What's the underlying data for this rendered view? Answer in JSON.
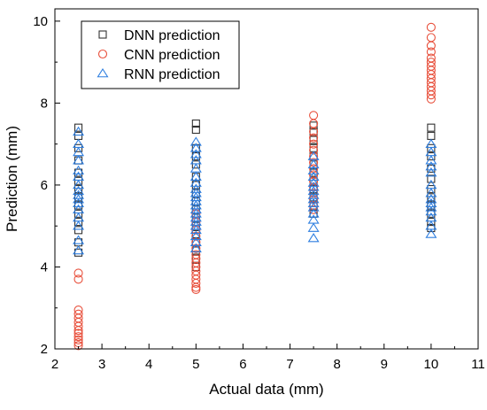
{
  "chart_data": {
    "type": "scatter",
    "xlabel": "Actual data (mm)",
    "ylabel": "Prediction (mm)",
    "xlim": [
      2,
      11
    ],
    "ylim": [
      2,
      10.3
    ],
    "xticks": [
      2,
      3,
      4,
      5,
      6,
      7,
      8,
      9,
      10,
      11
    ],
    "yticks": [
      2,
      4,
      6,
      8,
      10
    ],
    "grid": false,
    "legend_position": "top-left",
    "series": [
      {
        "name": "DNN prediction",
        "marker": "square",
        "color": "#333333",
        "points": [
          [
            2.5,
            7.4
          ],
          [
            2.5,
            7.2
          ],
          [
            2.5,
            6.9
          ],
          [
            2.5,
            6.6
          ],
          [
            2.5,
            6.3
          ],
          [
            2.5,
            6.1
          ],
          [
            2.5,
            5.9
          ],
          [
            2.5,
            5.7
          ],
          [
            2.5,
            5.5
          ],
          [
            2.5,
            5.3
          ],
          [
            2.5,
            5.1
          ],
          [
            2.5,
            4.9
          ],
          [
            2.5,
            4.6
          ],
          [
            2.5,
            4.35
          ],
          [
            5,
            7.5
          ],
          [
            5,
            7.35
          ],
          [
            5,
            6.9
          ],
          [
            5,
            6.7
          ],
          [
            5,
            6.5
          ],
          [
            5,
            6.2
          ],
          [
            5,
            6.0
          ],
          [
            5,
            5.8
          ],
          [
            5,
            5.6
          ],
          [
            5,
            5.4
          ],
          [
            5,
            5.2
          ],
          [
            5,
            5.0
          ],
          [
            5,
            4.8
          ],
          [
            5,
            4.6
          ],
          [
            5,
            4.4
          ],
          [
            5,
            4.2
          ],
          [
            5,
            4.0
          ],
          [
            7.5,
            7.45
          ],
          [
            7.5,
            7.3
          ],
          [
            7.5,
            7.1
          ],
          [
            7.5,
            6.9
          ],
          [
            7.5,
            6.7
          ],
          [
            7.5,
            6.5
          ],
          [
            7.5,
            6.3
          ],
          [
            7.5,
            6.1
          ],
          [
            7.5,
            5.9
          ],
          [
            7.5,
            5.7
          ],
          [
            7.5,
            5.5
          ],
          [
            7.5,
            5.3
          ],
          [
            10,
            7.4
          ],
          [
            10,
            7.2
          ],
          [
            10,
            6.9
          ],
          [
            10,
            6.7
          ],
          [
            10,
            6.4
          ],
          [
            10,
            6.15
          ],
          [
            10,
            5.9
          ],
          [
            10,
            5.7
          ],
          [
            10,
            5.5
          ],
          [
            10,
            5.3
          ],
          [
            10,
            5.1
          ],
          [
            10,
            4.95
          ]
        ]
      },
      {
        "name": "CNN prediction",
        "marker": "circle",
        "color": "#e8503c",
        "points": [
          [
            2.5,
            3.85
          ],
          [
            2.5,
            3.7
          ],
          [
            2.5,
            2.95
          ],
          [
            2.5,
            2.85
          ],
          [
            2.5,
            2.75
          ],
          [
            2.5,
            2.65
          ],
          [
            2.5,
            2.55
          ],
          [
            2.5,
            2.45
          ],
          [
            2.5,
            2.38
          ],
          [
            2.5,
            2.3
          ],
          [
            2.5,
            2.22
          ],
          [
            2.5,
            2.15
          ],
          [
            2.5,
            2.08
          ],
          [
            5,
            5.3
          ],
          [
            5,
            5.1
          ],
          [
            5,
            4.9
          ],
          [
            5,
            4.75
          ],
          [
            5,
            4.6
          ],
          [
            5,
            4.45
          ],
          [
            5,
            4.3
          ],
          [
            5,
            4.2
          ],
          [
            5,
            4.1
          ],
          [
            5,
            4.0
          ],
          [
            5,
            3.9
          ],
          [
            5,
            3.8
          ],
          [
            5,
            3.7
          ],
          [
            5,
            3.6
          ],
          [
            5,
            3.5
          ],
          [
            5,
            3.45
          ],
          [
            7.5,
            7.7
          ],
          [
            7.5,
            7.5
          ],
          [
            7.5,
            7.3
          ],
          [
            7.5,
            7.15
          ],
          [
            7.5,
            7.0
          ],
          [
            7.5,
            6.85
          ],
          [
            7.5,
            6.7
          ],
          [
            7.5,
            6.55
          ],
          [
            7.5,
            6.4
          ],
          [
            7.5,
            6.25
          ],
          [
            7.5,
            6.1
          ],
          [
            7.5,
            5.95
          ],
          [
            7.5,
            5.8
          ],
          [
            7.5,
            5.65
          ],
          [
            7.5,
            5.5
          ],
          [
            7.5,
            5.4
          ],
          [
            10,
            9.85
          ],
          [
            10,
            9.6
          ],
          [
            10,
            9.4
          ],
          [
            10,
            9.25
          ],
          [
            10,
            9.1
          ],
          [
            10,
            9.0
          ],
          [
            10,
            8.9
          ],
          [
            10,
            8.8
          ],
          [
            10,
            8.7
          ],
          [
            10,
            8.6
          ],
          [
            10,
            8.5
          ],
          [
            10,
            8.4
          ],
          [
            10,
            8.3
          ],
          [
            10,
            8.2
          ],
          [
            10,
            8.1
          ]
        ]
      },
      {
        "name": "RNN prediction",
        "marker": "triangle",
        "color": "#2f7fe0",
        "points": [
          [
            2.5,
            7.3
          ],
          [
            2.5,
            7.0
          ],
          [
            2.5,
            6.8
          ],
          [
            2.5,
            6.6
          ],
          [
            2.5,
            6.35
          ],
          [
            2.5,
            6.2
          ],
          [
            2.5,
            6.0
          ],
          [
            2.5,
            5.85
          ],
          [
            2.5,
            5.75
          ],
          [
            2.5,
            5.65
          ],
          [
            2.5,
            5.55
          ],
          [
            2.5,
            5.4
          ],
          [
            2.5,
            5.2
          ],
          [
            2.5,
            5.0
          ],
          [
            2.5,
            4.65
          ],
          [
            2.5,
            4.4
          ],
          [
            5,
            7.05
          ],
          [
            5,
            6.9
          ],
          [
            5,
            6.75
          ],
          [
            5,
            6.6
          ],
          [
            5,
            6.4
          ],
          [
            5,
            6.2
          ],
          [
            5,
            6.05
          ],
          [
            5,
            5.9
          ],
          [
            5,
            5.8
          ],
          [
            5,
            5.7
          ],
          [
            5,
            5.6
          ],
          [
            5,
            5.5
          ],
          [
            5,
            5.4
          ],
          [
            5,
            5.3
          ],
          [
            5,
            5.2
          ],
          [
            5,
            5.1
          ],
          [
            5,
            5.0
          ],
          [
            5,
            4.9
          ],
          [
            5,
            4.75
          ],
          [
            5,
            4.6
          ],
          [
            5,
            4.45
          ],
          [
            7.5,
            6.7
          ],
          [
            7.5,
            6.5
          ],
          [
            7.5,
            6.35
          ],
          [
            7.5,
            6.2
          ],
          [
            7.5,
            6.05
          ],
          [
            7.5,
            5.95
          ],
          [
            7.5,
            5.85
          ],
          [
            7.5,
            5.75
          ],
          [
            7.5,
            5.65
          ],
          [
            7.5,
            5.55
          ],
          [
            7.5,
            5.45
          ],
          [
            7.5,
            5.3
          ],
          [
            7.5,
            5.15
          ],
          [
            7.5,
            4.95
          ],
          [
            7.5,
            4.7
          ],
          [
            10,
            7.0
          ],
          [
            10,
            6.8
          ],
          [
            10,
            6.6
          ],
          [
            10,
            6.45
          ],
          [
            10,
            6.3
          ],
          [
            10,
            6.0
          ],
          [
            10,
            5.8
          ],
          [
            10,
            5.65
          ],
          [
            10,
            5.55
          ],
          [
            10,
            5.45
          ],
          [
            10,
            5.35
          ],
          [
            10,
            5.2
          ],
          [
            10,
            5.0
          ],
          [
            10,
            4.8
          ]
        ]
      }
    ]
  }
}
